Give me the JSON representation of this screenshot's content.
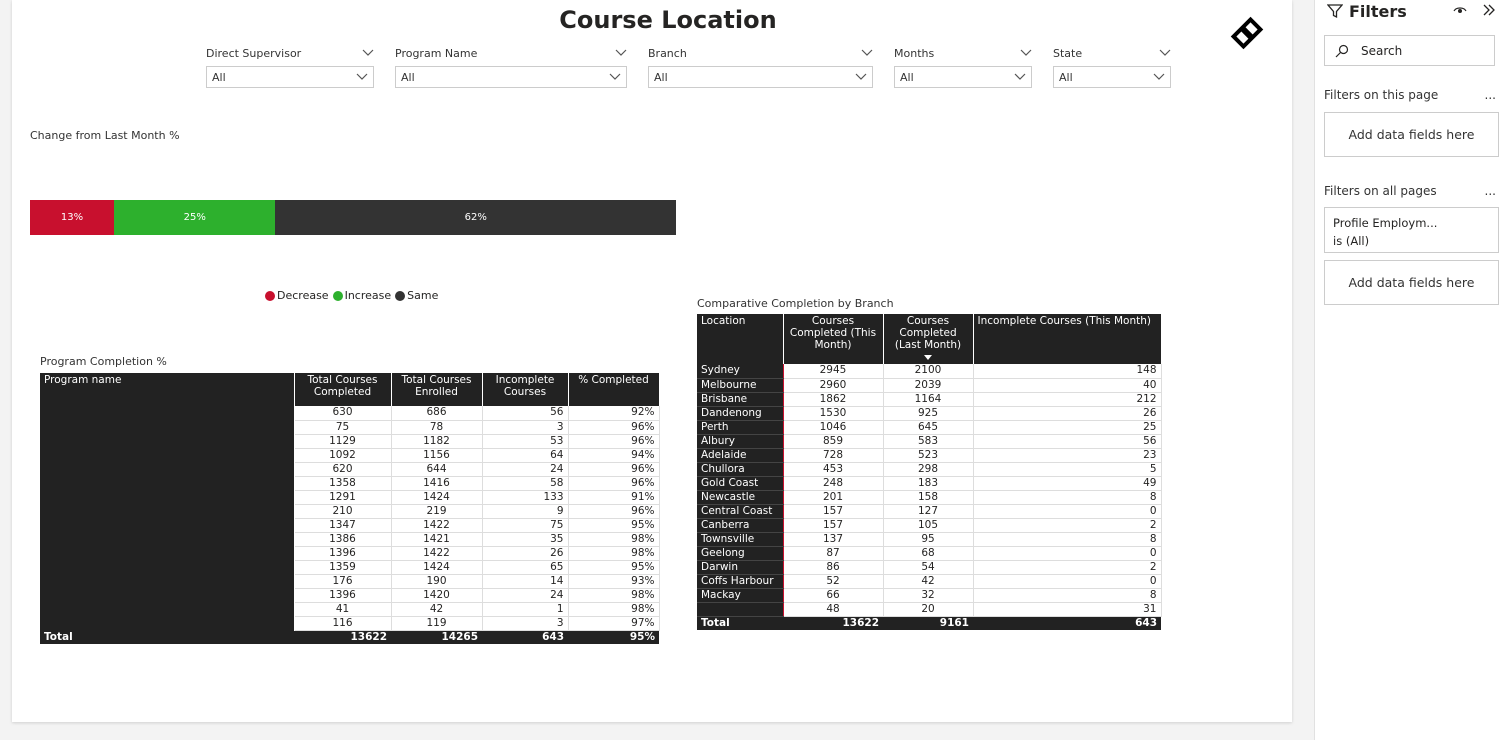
{
  "page": {
    "title": "Course Location"
  },
  "slicers": [
    {
      "label": "Direct Supervisor",
      "value": "All"
    },
    {
      "label": "Program Name",
      "value": "All"
    },
    {
      "label": "Branch",
      "value": "All"
    },
    {
      "label": "Months",
      "value": "All"
    },
    {
      "label": "State",
      "value": "All"
    }
  ],
  "change_chart": {
    "title": "Change from Last Month %",
    "segments": [
      {
        "label": "13%",
        "value": 13,
        "color": "#c8102e"
      },
      {
        "label": "25%",
        "value": 25,
        "color": "#2db02d"
      },
      {
        "label": "62%",
        "value": 62,
        "color": "#333333"
      }
    ],
    "legend": [
      {
        "name": "Decrease",
        "color": "#c8102e"
      },
      {
        "name": "Increase",
        "color": "#2db02d"
      },
      {
        "name": "Same",
        "color": "#333333"
      }
    ]
  },
  "program_completion": {
    "title": "Program Completion %",
    "headers": [
      "Program name",
      "Total Courses Completed",
      "Total Courses Enrolled",
      "Incomplete Courses",
      "% Completed"
    ],
    "rows": [
      [
        "630",
        "686",
        "56",
        "92%"
      ],
      [
        "75",
        "78",
        "3",
        "96%"
      ],
      [
        "1129",
        "1182",
        "53",
        "96%"
      ],
      [
        "1092",
        "1156",
        "64",
        "94%"
      ],
      [
        "620",
        "644",
        "24",
        "96%"
      ],
      [
        "1358",
        "1416",
        "58",
        "96%"
      ],
      [
        "1291",
        "1424",
        "133",
        "91%"
      ],
      [
        "210",
        "219",
        "9",
        "96%"
      ],
      [
        "1347",
        "1422",
        "75",
        "95%"
      ],
      [
        "1386",
        "1421",
        "35",
        "98%"
      ],
      [
        "1396",
        "1422",
        "26",
        "98%"
      ],
      [
        "1359",
        "1424",
        "65",
        "95%"
      ],
      [
        "176",
        "190",
        "14",
        "93%"
      ],
      [
        "1396",
        "1420",
        "24",
        "98%"
      ],
      [
        "41",
        "42",
        "1",
        "98%"
      ],
      [
        "116",
        "119",
        "3",
        "97%"
      ]
    ],
    "total": [
      "Total",
      "13622",
      "14265",
      "643",
      "95%"
    ]
  },
  "comparative": {
    "title": "Comparative Completion by Branch",
    "headers": [
      "Location",
      "Courses Completed (This Month)",
      "Courses Completed (Last Month)",
      "Incomplete Courses (This Month)"
    ],
    "rows": [
      [
        "Sydney",
        "2945",
        "2100",
        "148"
      ],
      [
        "Melbourne",
        "2960",
        "2039",
        "40"
      ],
      [
        "Brisbane",
        "1862",
        "1164",
        "212"
      ],
      [
        "Dandenong",
        "1530",
        "925",
        "26"
      ],
      [
        "Perth",
        "1046",
        "645",
        "25"
      ],
      [
        "Albury",
        "859",
        "583",
        "56"
      ],
      [
        "Adelaide",
        "728",
        "523",
        "23"
      ],
      [
        "Chullora",
        "453",
        "298",
        "5"
      ],
      [
        "Gold Coast",
        "248",
        "183",
        "49"
      ],
      [
        "Newcastle",
        "201",
        "158",
        "8"
      ],
      [
        "Central Coast",
        "157",
        "127",
        "0"
      ],
      [
        "Canberra",
        "157",
        "105",
        "2"
      ],
      [
        "Townsville",
        "137",
        "95",
        "8"
      ],
      [
        "Geelong",
        "87",
        "68",
        "0"
      ],
      [
        "Darwin",
        "86",
        "54",
        "2"
      ],
      [
        "Coffs Harbour",
        "52",
        "42",
        "0"
      ],
      [
        "Mackay",
        "66",
        "32",
        "8"
      ],
      [
        "",
        "48",
        "20",
        "31"
      ]
    ],
    "total": [
      "Total",
      "13622",
      "9161",
      "643"
    ]
  },
  "filters_pane": {
    "title": "Filters",
    "search_placeholder": "Search",
    "on_this_page": "Filters on this page",
    "add_fields": "Add data fields here",
    "on_all_pages": "Filters on all pages",
    "card_line1": "Profile Employm...",
    "card_line2": "is (All)",
    "more": "..."
  }
}
